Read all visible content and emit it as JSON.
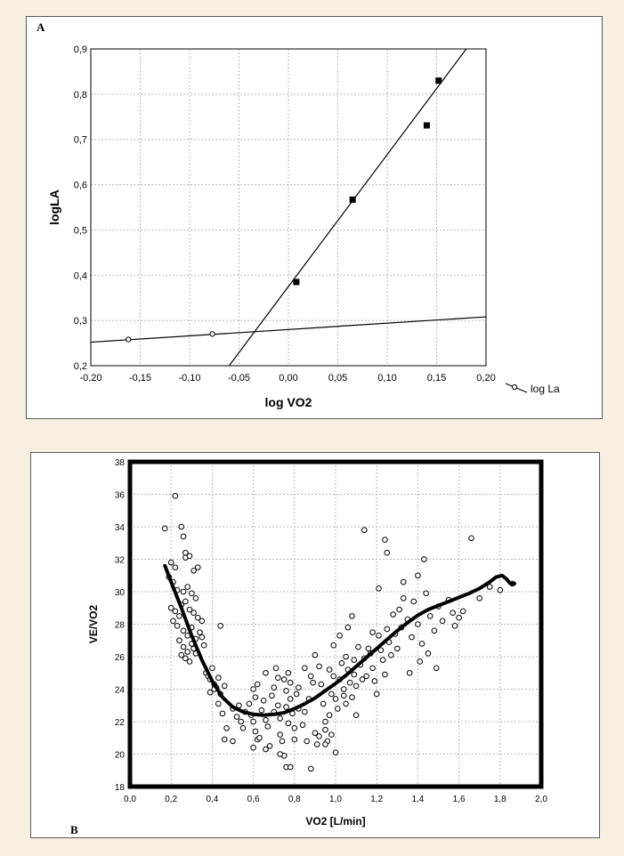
{
  "panel_a_label": "A",
  "panel_b_label": "B",
  "chart_data": [
    {
      "type": "scatter",
      "xlabel": "log VO2",
      "ylabel": "logLA",
      "xlim": [
        -0.2,
        0.2
      ],
      "ylim": [
        0.2,
        0.9
      ],
      "x_ticks": [
        "-0,20",
        "-0,15",
        "-0,10",
        "-0,05",
        "0,00",
        "0,05",
        "0,10",
        "0,15",
        "0,20"
      ],
      "y_ticks": [
        "0,2",
        "0,3",
        "0,4",
        "0,5",
        "0,6",
        "0,7",
        "0,8",
        "0,9"
      ],
      "x_tick_values": [
        -0.2,
        -0.15,
        -0.1,
        -0.05,
        0.0,
        0.05,
        0.1,
        0.15,
        0.2
      ],
      "y_tick_values": [
        0.2,
        0.3,
        0.4,
        0.5,
        0.6,
        0.7,
        0.8,
        0.9
      ],
      "grid": true,
      "legend": {
        "label": "log La",
        "position": "bottom-right, outside"
      },
      "series": [
        {
          "name": "log La",
          "marker": "open-circle",
          "points": [
            [
              -0.162,
              0.258
            ],
            [
              -0.077,
              0.27
            ]
          ]
        },
        {
          "marker": "filled-square",
          "points": [
            [
              0.008,
              0.385
            ],
            [
              0.065,
              0.567
            ],
            [
              0.14,
              0.731
            ],
            [
              0.152,
              0.83
            ]
          ]
        }
      ],
      "lines": [
        {
          "from": [
            -0.2,
            0.252
          ],
          "to": [
            0.2,
            0.308
          ]
        },
        {
          "from": [
            -0.06,
            0.2
          ],
          "to": [
            0.18,
            0.9
          ]
        }
      ]
    },
    {
      "type": "scatter",
      "xlabel": "VO2 [L/min]",
      "ylabel": "VE/VO2",
      "xlim": [
        0.0,
        2.0
      ],
      "ylim": [
        18,
        38
      ],
      "x_ticks": [
        "0,0",
        "0,2",
        "0,4",
        "0,6",
        "0,8",
        "1,0",
        "1,2",
        "1,4",
        "1,6",
        "1,8",
        "2,0"
      ],
      "y_ticks": [
        "18",
        "20",
        "22",
        "24",
        "26",
        "28",
        "30",
        "32",
        "34",
        "36",
        "38"
      ],
      "x_tick_values": [
        0.0,
        0.2,
        0.4,
        0.6,
        0.8,
        1.0,
        1.2,
        1.4,
        1.6,
        1.8,
        2.0
      ],
      "y_tick_values": [
        18,
        20,
        22,
        24,
        26,
        28,
        30,
        32,
        34,
        36,
        38
      ],
      "grid": true,
      "points": [
        [
          0.17,
          33.9
        ],
        [
          0.22,
          35.9
        ],
        [
          0.25,
          34.0
        ],
        [
          0.26,
          33.4
        ],
        [
          0.27,
          32.4
        ],
        [
          0.27,
          32.1
        ],
        [
          0.29,
          32.2
        ],
        [
          0.2,
          31.8
        ],
        [
          0.22,
          31.5
        ],
        [
          0.31,
          31.3
        ],
        [
          0.33,
          31.5
        ],
        [
          0.19,
          30.9
        ],
        [
          0.21,
          30.6
        ],
        [
          0.23,
          30.1
        ],
        [
          0.26,
          30.0
        ],
        [
          0.28,
          30.3
        ],
        [
          0.3,
          29.9
        ],
        [
          0.32,
          29.6
        ],
        [
          0.2,
          29.0
        ],
        [
          0.22,
          28.8
        ],
        [
          0.24,
          28.5
        ],
        [
          0.25,
          29.2
        ],
        [
          0.27,
          29.4
        ],
        [
          0.29,
          28.9
        ],
        [
          0.31,
          28.7
        ],
        [
          0.33,
          28.4
        ],
        [
          0.21,
          28.2
        ],
        [
          0.23,
          27.9
        ],
        [
          0.26,
          27.6
        ],
        [
          0.28,
          27.3
        ],
        [
          0.3,
          27.8
        ],
        [
          0.32,
          27.1
        ],
        [
          0.34,
          27.5
        ],
        [
          0.24,
          27.0
        ],
        [
          0.26,
          26.6
        ],
        [
          0.28,
          26.3
        ],
        [
          0.3,
          26.8
        ],
        [
          0.32,
          26.2
        ],
        [
          0.25,
          26.1
        ],
        [
          0.27,
          25.9
        ],
        [
          0.29,
          25.7
        ],
        [
          0.31,
          26.5
        ],
        [
          0.35,
          27.2
        ],
        [
          0.36,
          26.7
        ],
        [
          0.35,
          28.2
        ],
        [
          0.44,
          27.9
        ],
        [
          0.37,
          25.0
        ],
        [
          0.38,
          24.8
        ],
        [
          0.39,
          24.6
        ],
        [
          0.4,
          25.3
        ],
        [
          0.41,
          24.3
        ],
        [
          0.42,
          24.1
        ],
        [
          0.43,
          24.7
        ],
        [
          0.39,
          23.8
        ],
        [
          0.41,
          24.0
        ],
        [
          0.44,
          23.7
        ],
        [
          0.46,
          24.2
        ],
        [
          0.43,
          23.1
        ],
        [
          0.45,
          22.5
        ],
        [
          0.47,
          21.6
        ],
        [
          0.5,
          22.8
        ],
        [
          0.52,
          22.3
        ],
        [
          0.54,
          22.0
        ],
        [
          0.55,
          21.6
        ],
        [
          0.53,
          23.0
        ],
        [
          0.46,
          20.9
        ],
        [
          0.5,
          20.8
        ],
        [
          0.56,
          22.6
        ],
        [
          0.58,
          23.1
        ],
        [
          0.59,
          22.4
        ],
        [
          0.6,
          24.0
        ],
        [
          0.61,
          23.5
        ],
        [
          0.62,
          24.3
        ],
        [
          0.6,
          22.0
        ],
        [
          0.61,
          21.4
        ],
        [
          0.62,
          20.9
        ],
        [
          0.6,
          20.4
        ],
        [
          0.63,
          21.0
        ],
        [
          0.64,
          22.7
        ],
        [
          0.65,
          23.3
        ],
        [
          0.66,
          22.1
        ],
        [
          0.67,
          21.7
        ],
        [
          0.68,
          20.5
        ],
        [
          0.66,
          20.3
        ],
        [
          0.66,
          25.0
        ],
        [
          0.69,
          23.6
        ],
        [
          0.7,
          24.1
        ],
        [
          0.7,
          22.6
        ],
        [
          0.71,
          25.3
        ],
        [
          0.72,
          24.7
        ],
        [
          0.72,
          23.0
        ],
        [
          0.73,
          22.2
        ],
        [
          0.73,
          21.2
        ],
        [
          0.74,
          20.8
        ],
        [
          0.75,
          24.6
        ],
        [
          0.76,
          23.9
        ],
        [
          0.76,
          22.9
        ],
        [
          0.77,
          21.9
        ],
        [
          0.77,
          25.0
        ],
        [
          0.78,
          24.4
        ],
        [
          0.78,
          23.4
        ],
        [
          0.79,
          22.5
        ],
        [
          0.8,
          21.6
        ],
        [
          0.8,
          20.9
        ],
        [
          0.81,
          23.7
        ],
        [
          0.82,
          22.8
        ],
        [
          0.82,
          24.1
        ],
        [
          0.75,
          19.9
        ],
        [
          0.76,
          19.2
        ],
        [
          0.78,
          19.2
        ],
        [
          0.73,
          20.0
        ],
        [
          0.84,
          21.8
        ],
        [
          0.86,
          20.8
        ],
        [
          0.85,
          22.6
        ],
        [
          0.87,
          23.4
        ],
        [
          0.88,
          24.8
        ],
        [
          0.89,
          24.4
        ],
        [
          0.9,
          21.3
        ],
        [
          0.91,
          20.6
        ],
        [
          0.92,
          21.1
        ],
        [
          0.92,
          25.4
        ],
        [
          0.93,
          24.3
        ],
        [
          0.94,
          23.1
        ],
        [
          0.95,
          22.0
        ],
        [
          0.95,
          21.5
        ],
        [
          0.96,
          20.8
        ],
        [
          0.97,
          22.4
        ],
        [
          0.97,
          25.2
        ],
        [
          0.98,
          23.7
        ],
        [
          0.99,
          24.8
        ],
        [
          1.0,
          23.4
        ],
        [
          1.01,
          22.8
        ],
        [
          1.02,
          24.6
        ],
        [
          1.03,
          25.6
        ],
        [
          1.04,
          24.0
        ],
        [
          1.05,
          23.1
        ],
        [
          1.05,
          26.0
        ],
        [
          1.06,
          25.2
        ],
        [
          1.07,
          24.4
        ],
        [
          1.08,
          23.5
        ],
        [
          1.09,
          25.8
        ],
        [
          1.09,
          24.9
        ],
        [
          1.1,
          24.2
        ],
        [
          1.11,
          26.6
        ],
        [
          1.12,
          25.5
        ],
        [
          1.13,
          24.6
        ],
        [
          1.14,
          25.9
        ],
        [
          1.15,
          24.8
        ],
        [
          1.16,
          26.5
        ],
        [
          1.17,
          26.2
        ],
        [
          1.18,
          25.3
        ],
        [
          1.19,
          24.5
        ],
        [
          1.2,
          23.7
        ],
        [
          1.21,
          27.3
        ],
        [
          1.22,
          26.4
        ],
        [
          1.23,
          25.8
        ],
        [
          1.24,
          24.9
        ],
        [
          1.25,
          27.7
        ],
        [
          1.26,
          26.9
        ],
        [
          1.27,
          26.1
        ],
        [
          1.28,
          28.6
        ],
        [
          1.29,
          27.4
        ],
        [
          1.3,
          26.5
        ],
        [
          1.31,
          28.9
        ],
        [
          1.32,
          27.8
        ],
        [
          1.33,
          29.6
        ],
        [
          1.35,
          28.3
        ],
        [
          1.37,
          27.2
        ],
        [
          1.38,
          29.4
        ],
        [
          1.4,
          28.0
        ],
        [
          1.42,
          26.8
        ],
        [
          1.44,
          29.9
        ],
        [
          1.46,
          28.5
        ],
        [
          1.48,
          27.6
        ],
        [
          1.5,
          29.1
        ],
        [
          1.52,
          28.2
        ],
        [
          1.55,
          29.5
        ],
        [
          1.57,
          28.7
        ],
        [
          1.58,
          27.9
        ],
        [
          1.6,
          28.4
        ],
        [
          1.62,
          28.8
        ],
        [
          1.7,
          29.6
        ],
        [
          1.75,
          30.3
        ],
        [
          1.8,
          30.1
        ],
        [
          1.86,
          30.5
        ],
        [
          1.14,
          33.8
        ],
        [
          1.24,
          33.2
        ],
        [
          1.25,
          32.4
        ],
        [
          1.43,
          32.0
        ],
        [
          1.66,
          33.3
        ],
        [
          1.4,
          31.0
        ],
        [
          1.33,
          30.6
        ],
        [
          1.21,
          30.2
        ],
        [
          1.18,
          27.5
        ],
        [
          1.08,
          28.5
        ],
        [
          1.06,
          27.8
        ],
        [
          1.02,
          27.3
        ],
        [
          0.99,
          26.7
        ],
        [
          0.9,
          26.1
        ],
        [
          0.85,
          25.3
        ],
        [
          1.1,
          22.4
        ],
        [
          1.04,
          23.6
        ],
        [
          0.98,
          21.2
        ],
        [
          1.0,
          20.1
        ],
        [
          0.95,
          20.6
        ],
        [
          0.88,
          19.1
        ],
        [
          1.36,
          25.0
        ],
        [
          1.45,
          26.2
        ],
        [
          1.49,
          25.3
        ],
        [
          1.41,
          25.7
        ]
      ],
      "fit_curve": [
        [
          0.17,
          31.6
        ],
        [
          0.2,
          30.6
        ],
        [
          0.25,
          29.0
        ],
        [
          0.3,
          27.3
        ],
        [
          0.35,
          25.8
        ],
        [
          0.4,
          24.5
        ],
        [
          0.45,
          23.5
        ],
        [
          0.5,
          22.9
        ],
        [
          0.55,
          22.6
        ],
        [
          0.6,
          22.45
        ],
        [
          0.65,
          22.4
        ],
        [
          0.7,
          22.45
        ],
        [
          0.75,
          22.55
        ],
        [
          0.8,
          22.8
        ],
        [
          0.85,
          23.1
        ],
        [
          0.9,
          23.45
        ],
        [
          0.95,
          23.9
        ],
        [
          1.0,
          24.35
        ],
        [
          1.05,
          24.85
        ],
        [
          1.1,
          25.4
        ],
        [
          1.15,
          25.95
        ],
        [
          1.2,
          26.5
        ],
        [
          1.25,
          27.05
        ],
        [
          1.3,
          27.6
        ],
        [
          1.35,
          28.1
        ],
        [
          1.4,
          28.55
        ],
        [
          1.45,
          28.9
        ],
        [
          1.5,
          29.15
        ],
        [
          1.55,
          29.4
        ],
        [
          1.6,
          29.65
        ],
        [
          1.65,
          29.9
        ],
        [
          1.7,
          30.2
        ],
        [
          1.75,
          30.6
        ],
        [
          1.78,
          30.9
        ],
        [
          1.81,
          31.0
        ],
        [
          1.83,
          30.8
        ],
        [
          1.85,
          30.5
        ],
        [
          1.87,
          30.5
        ]
      ]
    }
  ]
}
